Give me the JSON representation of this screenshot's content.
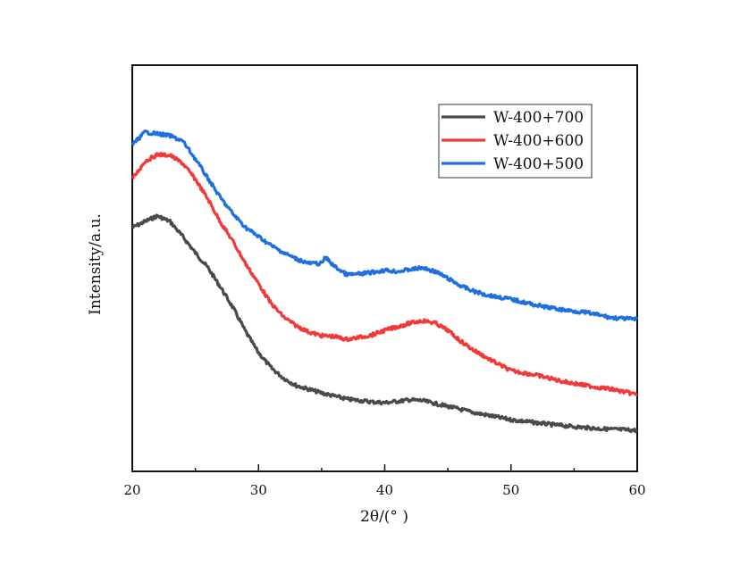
{
  "chart_data": {
    "type": "line",
    "title": "",
    "xlabel": "2θ/(° )",
    "ylabel": "Intensity/a.u.",
    "xlim": [
      20,
      60
    ],
    "ylim": [
      0,
      100
    ],
    "xticks": [
      20,
      30,
      40,
      50,
      60
    ],
    "xtick_labels": [
      "20",
      "30",
      "40",
      "50",
      "60"
    ],
    "minor_xticks": [
      25,
      35,
      45,
      55
    ],
    "yticks_shown": false,
    "grid": false,
    "legend_position": "top-right",
    "series": [
      {
        "name": "W-400+700",
        "color": "#4a4a4a",
        "x": [
          20,
          21,
          22,
          23,
          24,
          25,
          26,
          27,
          28,
          29,
          30,
          31,
          32,
          33,
          35,
          37,
          39,
          40,
          42,
          43,
          45,
          47,
          50,
          53,
          55,
          57,
          60
        ],
        "y": [
          60.0,
          61.5,
          62.9,
          61.5,
          57.8,
          53.8,
          50.1,
          45.3,
          40.2,
          34.3,
          29.2,
          25.5,
          22.9,
          21.1,
          19.3,
          17.8,
          17.1,
          16.9,
          17.6,
          17.4,
          16.0,
          14.5,
          12.7,
          11.6,
          11.0,
          10.5,
          10.1
        ]
      },
      {
        "name": "W-400+600",
        "color": "#f03a3a",
        "x": [
          20,
          21,
          22,
          23,
          24,
          25,
          26,
          27,
          28,
          29,
          30,
          31,
          32,
          33,
          34,
          35,
          36,
          37,
          38,
          39,
          40,
          41,
          42,
          43,
          44,
          45,
          46,
          47,
          48,
          49,
          50,
          52,
          54,
          56,
          58,
          60
        ],
        "y": [
          71.9,
          76.3,
          78.0,
          77.8,
          75.8,
          71.9,
          67.0,
          61.3,
          56.5,
          51.0,
          46.2,
          41.3,
          38.0,
          35.8,
          34.3,
          33.4,
          33.2,
          32.5,
          33.0,
          33.6,
          34.7,
          35.6,
          36.5,
          37.1,
          36.5,
          34.7,
          32.1,
          29.9,
          28.1,
          26.4,
          24.8,
          23.7,
          22.2,
          21.1,
          20.2,
          18.9
        ]
      },
      {
        "name": "W-400+500",
        "color": "#1f6fe0",
        "x": [
          20,
          21,
          22,
          23,
          24,
          25,
          26,
          27,
          28,
          29,
          30,
          31,
          32,
          33,
          34,
          35,
          35.3,
          36,
          37,
          38,
          39,
          40,
          41,
          42,
          43,
          44,
          45,
          46,
          47,
          48,
          49,
          50,
          52,
          54,
          56,
          58,
          60
        ],
        "y": [
          80.4,
          83.5,
          83.1,
          82.6,
          81.3,
          76.9,
          72.1,
          67.3,
          63.3,
          60.0,
          57.8,
          55.6,
          53.8,
          52.3,
          51.2,
          51.2,
          52.7,
          50.5,
          48.4,
          48.6,
          49.0,
          49.5,
          49.2,
          49.7,
          50.1,
          49.2,
          47.5,
          45.7,
          44.4,
          43.5,
          42.9,
          42.4,
          40.9,
          39.8,
          39.1,
          37.8,
          37.4
        ]
      }
    ]
  }
}
